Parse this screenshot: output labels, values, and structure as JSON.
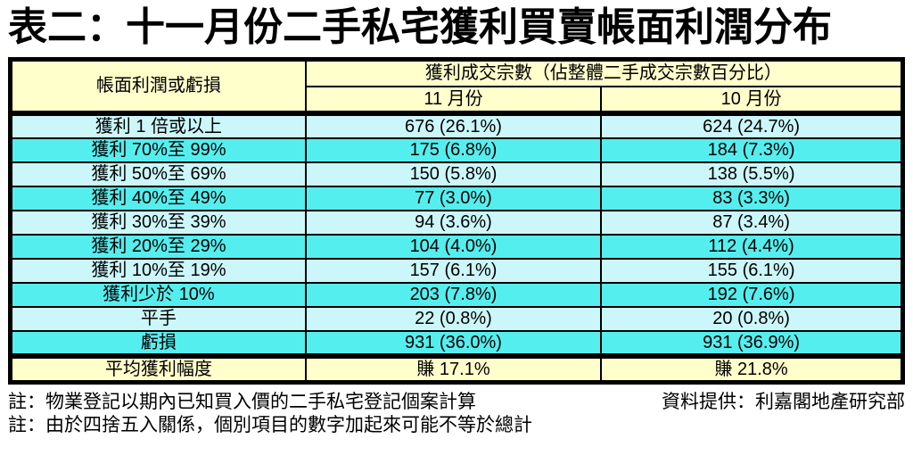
{
  "title": "表二：十一月份二手私宅獲利買賣帳面利潤分布",
  "table": {
    "header": {
      "col_category": "帳面利潤或虧損",
      "col_group": "獲利成交宗數（佔整體二手成交宗數百分比）",
      "col_month_nov": "11 月份",
      "col_month_oct": "10 月份"
    },
    "rows": [
      {
        "label": "獲利 1 倍或以上",
        "nov": "676 (26.1%)",
        "oct": "624 (24.7%)"
      },
      {
        "label": "獲利 70%至 99%",
        "nov": "175 (6.8%)",
        "oct": "184 (7.3%)"
      },
      {
        "label": "獲利 50%至 69%",
        "nov": "150 (5.8%)",
        "oct": "138 (5.5%)"
      },
      {
        "label": "獲利 40%至 49%",
        "nov": "77 (3.0%)",
        "oct": "83 (3.3%)"
      },
      {
        "label": "獲利 30%至 39%",
        "nov": "94 (3.6%)",
        "oct": "87 (3.4%)"
      },
      {
        "label": "獲利 20%至 29%",
        "nov": "104 (4.0%)",
        "oct": "112 (4.4%)"
      },
      {
        "label": "獲利 10%至 19%",
        "nov": "157 (6.1%)",
        "oct": "155 (6.1%)"
      },
      {
        "label": "獲利少於 10%",
        "nov": "203 (7.8%)",
        "oct": "192 (7.6%)"
      },
      {
        "label": "平手",
        "nov": "22 (0.8%)",
        "oct": "20 (0.8%)"
      },
      {
        "label": "虧損",
        "nov": "931 (36.0%)",
        "oct": "931 (36.9%)"
      }
    ],
    "footer": {
      "label": "平均獲利幅度",
      "nov": "賺 17.1%",
      "oct": "賺 21.8%"
    }
  },
  "notes": {
    "note1": "註：物業登記以期內已知買入價的二手私宅登記個案計算",
    "source": "資料提供：利嘉閣地產研究部",
    "note2": "註：由於四捨五入關係，個別項目的數字加起來可能不等於總計"
  },
  "colors": {
    "header_bg": "#FFFFCC",
    "row_light": "#CCF7FA",
    "row_bright": "#55EEEE",
    "border": "#000000"
  },
  "chart_data": {
    "type": "table",
    "title": "表二：十一月份二手私宅獲利買賣帳面利潤分布",
    "column_group": "獲利成交宗數（佔整體二手成交宗數百分比）",
    "columns": [
      "帳面利潤或虧損",
      "11 月份",
      "10 月份"
    ],
    "rows": [
      {
        "category": "獲利 1 倍或以上",
        "nov_count": 676,
        "nov_pct": 26.1,
        "oct_count": 624,
        "oct_pct": 24.7
      },
      {
        "category": "獲利 70%至 99%",
        "nov_count": 175,
        "nov_pct": 6.8,
        "oct_count": 184,
        "oct_pct": 7.3
      },
      {
        "category": "獲利 50%至 69%",
        "nov_count": 150,
        "nov_pct": 5.8,
        "oct_count": 138,
        "oct_pct": 5.5
      },
      {
        "category": "獲利 40%至 49%",
        "nov_count": 77,
        "nov_pct": 3.0,
        "oct_count": 83,
        "oct_pct": 3.3
      },
      {
        "category": "獲利 30%至 39%",
        "nov_count": 94,
        "nov_pct": 3.6,
        "oct_count": 87,
        "oct_pct": 3.4
      },
      {
        "category": "獲利 20%至 29%",
        "nov_count": 104,
        "nov_pct": 4.0,
        "oct_count": 112,
        "oct_pct": 4.4
      },
      {
        "category": "獲利 10%至 19%",
        "nov_count": 157,
        "nov_pct": 6.1,
        "oct_count": 155,
        "oct_pct": 6.1
      },
      {
        "category": "獲利少於 10%",
        "nov_count": 203,
        "nov_pct": 7.8,
        "oct_count": 192,
        "oct_pct": 7.6
      },
      {
        "category": "平手",
        "nov_count": 22,
        "nov_pct": 0.8,
        "oct_count": 20,
        "oct_pct": 0.8
      },
      {
        "category": "虧損",
        "nov_count": 931,
        "nov_pct": 36.0,
        "oct_count": 931,
        "oct_pct": 36.9
      }
    ],
    "summary": {
      "category": "平均獲利幅度",
      "nov": "賺 17.1%",
      "oct": "賺 21.8%"
    }
  }
}
